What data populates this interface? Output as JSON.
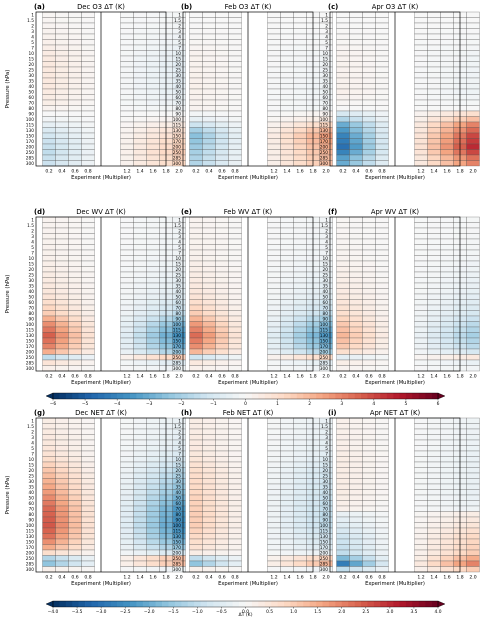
{
  "chart_data": {
    "type": "heatmap",
    "pressure_levels": [
      "1",
      "1.5",
      "2",
      "3",
      "4",
      "5",
      "7",
      "10",
      "15",
      "20",
      "25",
      "30",
      "35",
      "40",
      "50",
      "60",
      "70",
      "80",
      "90",
      "100",
      "115",
      "130",
      "150",
      "170",
      "200",
      "250",
      "285",
      "300"
    ],
    "x_ticks": [
      0.2,
      0.4,
      0.6,
      0.8,
      1.2,
      1.4,
      1.6,
      1.8,
      2.0
    ],
    "xlabel": "Experiment (Multiplier)",
    "ylabel": "Pressure (hPa)",
    "colormap": [
      "#053061",
      "#2166ac",
      "#4393c3",
      "#92c5de",
      "#d1e5f0",
      "#f7f7f7",
      "#fddbc7",
      "#f4a582",
      "#d6604d",
      "#b2182b",
      "#67001f"
    ],
    "panels": [
      {
        "label": "(a)",
        "title": "Dec O3 ΔT (K)",
        "vmax": 6,
        "knots": [
          [
            1,
            0.1,
            -0.1
          ],
          [
            5,
            0.3,
            -0.3
          ],
          [
            10,
            0.5,
            -0.5
          ],
          [
            20,
            0.6,
            -0.6
          ],
          [
            40,
            0.6,
            -0.6
          ],
          [
            70,
            0.4,
            -0.4
          ],
          [
            100,
            -0.2,
            0.2
          ],
          [
            130,
            -0.9,
            0.9
          ],
          [
            170,
            -1.3,
            1.3
          ],
          [
            250,
            -1.5,
            1.5
          ],
          [
            300,
            -1.3,
            1.3
          ]
        ]
      },
      {
        "label": "(b)",
        "title": "Feb O3 ΔT (K)",
        "vmax": 6,
        "knots": [
          [
            1,
            0.0,
            0.0
          ],
          [
            10,
            0.2,
            -0.2
          ],
          [
            40,
            0.3,
            -0.3
          ],
          [
            80,
            0.2,
            -0.2
          ],
          [
            100,
            -0.5,
            0.5
          ],
          [
            130,
            -2.0,
            2.0
          ],
          [
            150,
            -2.5,
            2.5
          ],
          [
            200,
            -2.2,
            2.2
          ],
          [
            300,
            -1.8,
            1.8
          ]
        ]
      },
      {
        "label": "(c)",
        "title": "Apr O3 ΔT (K)",
        "vmax": 6,
        "knots": [
          [
            1,
            0.0,
            0.0
          ],
          [
            10,
            0.2,
            -0.2
          ],
          [
            50,
            0.3,
            -0.3
          ],
          [
            80,
            0.0,
            0.0
          ],
          [
            90,
            -1.0,
            1.0
          ],
          [
            115,
            -3.0,
            3.0
          ],
          [
            150,
            -4.0,
            4.0
          ],
          [
            200,
            -4.5,
            4.5
          ],
          [
            250,
            -4.0,
            4.0
          ],
          [
            300,
            -3.0,
            3.0
          ]
        ]
      },
      {
        "label": "(d)",
        "title": "Dec WV ΔT (K)",
        "vmax": 6,
        "knots": [
          [
            1,
            0.2,
            -0.2
          ],
          [
            20,
            0.4,
            -0.4
          ],
          [
            50,
            0.8,
            -0.8
          ],
          [
            80,
            1.5,
            -1.5
          ],
          [
            100,
            2.8,
            -2.8
          ],
          [
            130,
            3.6,
            -3.6
          ],
          [
            170,
            3.0,
            -3.0
          ],
          [
            200,
            2.2,
            -2.2
          ],
          [
            250,
            -1.5,
            1.5
          ],
          [
            285,
            0.8,
            -0.8
          ],
          [
            300,
            0.3,
            -0.3
          ]
        ]
      },
      {
        "label": "(e)",
        "title": "Feb WV ΔT (K)",
        "vmax": 6,
        "knots": [
          [
            1,
            0.2,
            -0.2
          ],
          [
            20,
            0.4,
            -0.4
          ],
          [
            50,
            0.8,
            -0.8
          ],
          [
            80,
            1.5,
            -1.5
          ],
          [
            100,
            2.6,
            -2.6
          ],
          [
            130,
            3.4,
            -3.4
          ],
          [
            170,
            2.8,
            -2.8
          ],
          [
            200,
            2.0,
            -2.0
          ],
          [
            250,
            -1.2,
            1.2
          ],
          [
            285,
            0.6,
            -0.6
          ],
          [
            300,
            0.3,
            -0.3
          ]
        ]
      },
      {
        "label": "(f)",
        "title": "Apr WV ΔT (K)",
        "vmax": 6,
        "knots": [
          [
            1,
            0.1,
            -0.1
          ],
          [
            20,
            0.3,
            -0.3
          ],
          [
            50,
            0.6,
            -0.6
          ],
          [
            80,
            1.0,
            -1.0
          ],
          [
            100,
            1.6,
            -1.6
          ],
          [
            130,
            2.0,
            -2.0
          ],
          [
            170,
            1.6,
            -1.6
          ],
          [
            200,
            1.0,
            -1.0
          ],
          [
            250,
            -0.6,
            0.6
          ],
          [
            285,
            0.4,
            -0.4
          ],
          [
            300,
            0.2,
            -0.2
          ]
        ]
      },
      {
        "label": "(g)",
        "title": "Dec NET ΔT (K)",
        "vmax": 4,
        "knots": [
          [
            1,
            0.3,
            -0.3
          ],
          [
            10,
            0.7,
            -0.7
          ],
          [
            20,
            1.1,
            -1.1
          ],
          [
            40,
            1.7,
            -1.7
          ],
          [
            70,
            2.3,
            -2.3
          ],
          [
            100,
            2.5,
            -2.5
          ],
          [
            130,
            2.2,
            -2.2
          ],
          [
            170,
            1.5,
            -1.5
          ],
          [
            200,
            0.7,
            -0.7
          ],
          [
            250,
            -1.2,
            1.2
          ],
          [
            285,
            -1.6,
            1.2
          ],
          [
            300,
            0.2,
            -0.2
          ]
        ]
      },
      {
        "label": "(h)",
        "title": "Feb NET ΔT (K)",
        "vmax": 4,
        "knots": [
          [
            1,
            0.3,
            -0.3
          ],
          [
            10,
            0.5,
            -0.5
          ],
          [
            20,
            0.7,
            -0.7
          ],
          [
            50,
            0.9,
            -0.9
          ],
          [
            80,
            1.0,
            -1.0
          ],
          [
            100,
            1.0,
            -1.0
          ],
          [
            130,
            0.8,
            -0.8
          ],
          [
            170,
            0.6,
            -0.6
          ],
          [
            200,
            0.3,
            -0.3
          ],
          [
            250,
            -1.0,
            0.9
          ],
          [
            285,
            -1.6,
            1.3
          ],
          [
            300,
            0.2,
            -0.2
          ]
        ]
      },
      {
        "label": "(i)",
        "title": "Apr NET ΔT (K)",
        "vmax": 4,
        "knots": [
          [
            1,
            0.2,
            -0.2
          ],
          [
            10,
            0.3,
            -0.3
          ],
          [
            40,
            0.3,
            -0.3
          ],
          [
            70,
            0.2,
            -0.2
          ],
          [
            80,
            -0.3,
            0.3
          ],
          [
            130,
            -0.8,
            0.8
          ],
          [
            200,
            -1.0,
            1.0
          ],
          [
            250,
            -1.8,
            1.5
          ],
          [
            285,
            -2.8,
            2.0
          ],
          [
            300,
            -1.0,
            1.0
          ]
        ]
      }
    ],
    "colorbars": [
      {
        "ticks": [
          "−6",
          "−5",
          "−4",
          "−3",
          "−2",
          "−1",
          "0",
          "1",
          "2",
          "3",
          "4",
          "5",
          "6"
        ],
        "vmin": -6,
        "vmax": 6,
        "label": ""
      },
      {
        "ticks": [
          "−4.0",
          "−3.5",
          "−3.0",
          "−2.5",
          "−2.0",
          "−1.5",
          "−1.0",
          "−0.5",
          "0.0",
          "0.5",
          "1.0",
          "1.5",
          "2.0",
          "2.5",
          "3.0",
          "3.5",
          "4.0"
        ],
        "vmin": -4,
        "vmax": 4,
        "label": "ΔT (K)"
      }
    ]
  }
}
